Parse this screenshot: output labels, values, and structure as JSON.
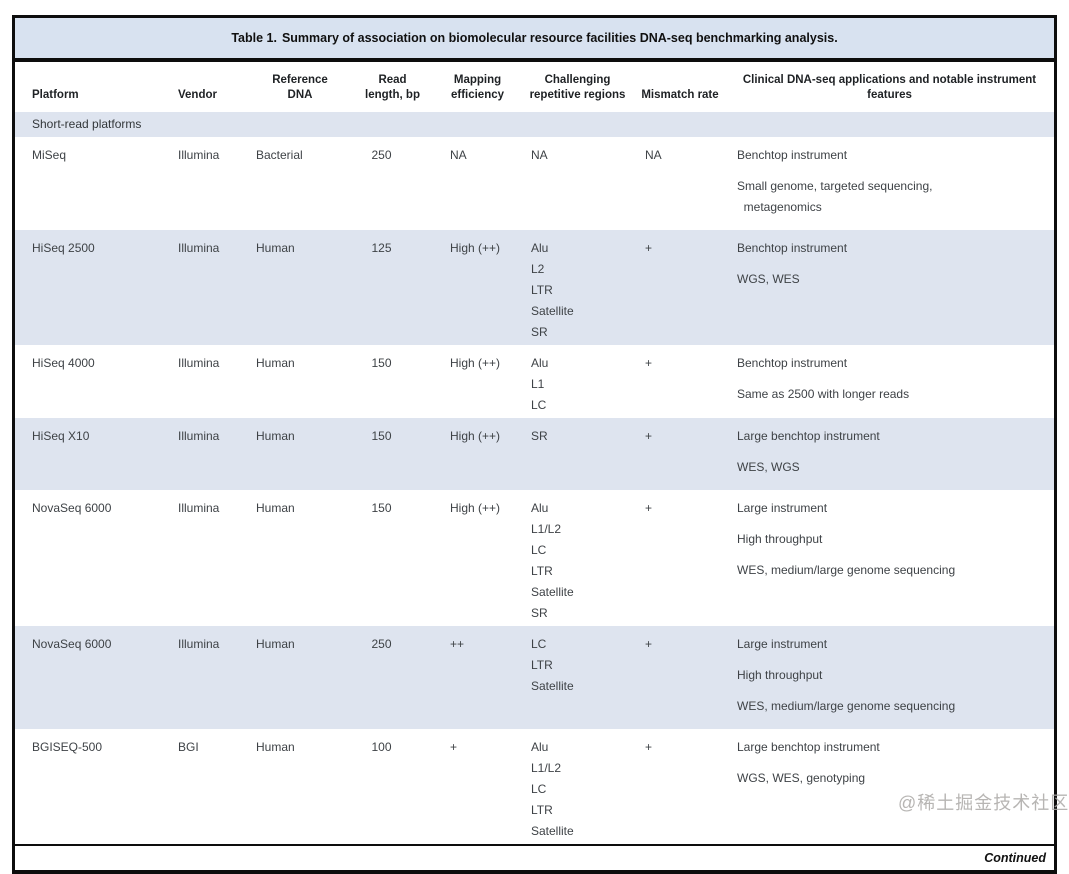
{
  "title": {
    "label": "Table 1.",
    "text": "Summary of association on biomolecular resource facilities DNA-seq benchmarking analysis."
  },
  "table": {
    "columns": [
      "Platform",
      "Vendor",
      "Reference\nDNA",
      "Read\nlength, bp",
      "Mapping\nefficiency",
      "Challenging\nrepetitive regions",
      "Mismatch rate",
      "Clinical DNA-seq applications and notable instrument\nfeatures"
    ],
    "section_label": "Short-read platforms",
    "rows": [
      {
        "platform": "MiSeq",
        "vendor": "Illumina",
        "reference_dna": "Bacterial",
        "read_length": "250",
        "mapping_efficiency": "NA",
        "repetitive_regions": [
          "NA"
        ],
        "mismatch_rate": "NA",
        "clinical": [
          "Benchtop instrument",
          "Small genome, targeted sequencing,\n  metagenomics"
        ]
      },
      {
        "platform": "HiSeq 2500",
        "vendor": "Illumina",
        "reference_dna": "Human",
        "read_length": "125",
        "mapping_efficiency": "High (++)",
        "repetitive_regions": [
          "Alu",
          "L2",
          "LTR",
          "Satellite",
          "SR"
        ],
        "mismatch_rate": "+",
        "clinical": [
          "Benchtop instrument",
          "WGS, WES"
        ]
      },
      {
        "platform": "HiSeq 4000",
        "vendor": "Illumina",
        "reference_dna": "Human",
        "read_length": "150",
        "mapping_efficiency": "High (++)",
        "repetitive_regions": [
          "Alu",
          "L1",
          "LC"
        ],
        "mismatch_rate": "+",
        "clinical": [
          "Benchtop instrument",
          "Same as 2500 with longer reads"
        ]
      },
      {
        "platform": "HiSeq X10",
        "vendor": "Illumina",
        "reference_dna": "Human",
        "read_length": "150",
        "mapping_efficiency": "High (++)",
        "repetitive_regions": [
          "SR"
        ],
        "mismatch_rate": "+",
        "clinical": [
          "Large benchtop instrument",
          "WES, WGS"
        ]
      },
      {
        "platform": "NovaSeq 6000",
        "vendor": "Illumina",
        "reference_dna": "Human",
        "read_length": "150",
        "mapping_efficiency": "High (++)",
        "repetitive_regions": [
          "Alu",
          "L1/L2",
          "LC",
          "LTR",
          "Satellite",
          "SR"
        ],
        "mismatch_rate": "+",
        "clinical": [
          "Large instrument",
          "High throughput",
          "WES, medium/large genome sequencing"
        ]
      },
      {
        "platform": "NovaSeq 6000",
        "vendor": "Illumina",
        "reference_dna": "Human",
        "read_length": "250",
        "mapping_efficiency": "++",
        "repetitive_regions": [
          "LC",
          "LTR",
          "Satellite"
        ],
        "mismatch_rate": "+",
        "clinical": [
          "Large instrument",
          "High throughput",
          "WES, medium/large genome sequencing"
        ]
      },
      {
        "platform": "BGISEQ-500",
        "vendor": "BGI",
        "reference_dna": "Human",
        "read_length": "100",
        "mapping_efficiency": "+",
        "repetitive_regions": [
          "Alu",
          "L1/L2",
          "LC",
          "LTR",
          "Satellite"
        ],
        "mismatch_rate": "+",
        "clinical": [
          "Large benchtop instrument",
          "WGS, WES, genotyping"
        ]
      }
    ],
    "footer": "Continued"
  },
  "watermark": "@稀土掘金技术社区",
  "colors": {
    "title_band": "#d8e2f0",
    "row_band": "#dee4ef",
    "border": "#0d0d0d",
    "body_text": "#3e4246"
  }
}
